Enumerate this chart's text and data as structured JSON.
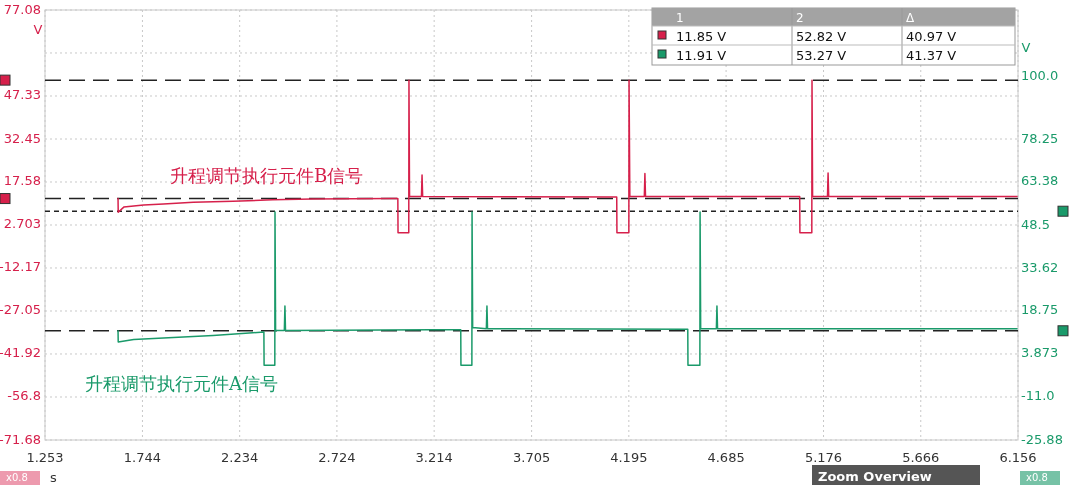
{
  "chart_data": {
    "type": "line",
    "xlabel": "s",
    "ylabel": "V",
    "y2label": "V",
    "xlim": [
      1.253,
      6.156
    ],
    "xticks": [
      1.253,
      1.744,
      2.234,
      2.724,
      3.214,
      3.705,
      4.195,
      4.685,
      5.176,
      5.666,
      6.156
    ],
    "ylim": [
      -71.68,
      77.08
    ],
    "yticks": [
      77.08,
      {
        "value": 62.21,
        "label": null
      },
      47.33,
      32.45,
      17.58,
      2.703,
      -12.17,
      -27.05,
      -41.92,
      -56.8,
      -71.68
    ],
    "y2lim": [
      -25.88,
      122.88
    ],
    "y2ticks": [
      {
        "value": 100,
        "label": "100.0"
      },
      78.25,
      63.38,
      48.5,
      33.62,
      18.75,
      3.873,
      {
        "value": -11,
        "label": "-11.0"
      },
      -25.88
    ],
    "grid": true,
    "series": [
      {
        "name": "升程调节执行元件B信号",
        "color": "#d6204b",
        "axis": "y",
        "x": [
          1.621,
          1.622,
          1.65,
          1.75,
          1.85,
          2.0,
          2.2,
          2.4,
          2.6,
          3.0,
          3.031,
          3.032,
          3.086,
          3.087,
          3.09,
          3.15,
          3.153,
          3.156,
          4.134,
          4.135,
          4.195,
          4.196,
          4.2,
          4.273,
          4.276,
          4.279,
          5.056,
          5.057,
          5.117,
          5.118,
          5.121,
          5.196,
          5.199,
          5.202,
          6.151
        ],
        "values": [
          11.9,
          7.1,
          8.9,
          9.6,
          10.0,
          10.6,
          10.9,
          11.4,
          11.7,
          11.9,
          11.9,
          0,
          0,
          52.8,
          12.6,
          12.6,
          20,
          12.6,
          12.4,
          0,
          0,
          52.8,
          12.6,
          12.6,
          20.5,
          12.6,
          12.6,
          0,
          0,
          52.8,
          12.6,
          12.6,
          20.7,
          12.6,
          12.6
        ]
      },
      {
        "name": "升程调节执行元件A信号",
        "color": "#1a9a6a",
        "axis": "y2",
        "x": [
          1.621,
          1.622,
          1.7,
          1.9,
          2.1,
          2.3,
          2.356,
          2.357,
          2.411,
          2.412,
          2.415,
          2.459,
          2.462,
          2.465,
          3.2,
          3.348,
          3.349,
          3.404,
          3.405,
          3.408,
          3.477,
          3.48,
          3.483,
          4.492,
          4.493,
          4.553,
          4.554,
          4.557,
          4.636,
          4.639,
          4.642,
          6.151
        ],
        "values": [
          11.9,
          8.0,
          8.9,
          9.6,
          10.3,
          11.2,
          11.5,
          0,
          0,
          53.0,
          12.0,
          12.0,
          20.5,
          12.0,
          12.3,
          12.3,
          0,
          0,
          53.0,
          13,
          12.6,
          20.5,
          12.6,
          12.4,
          0,
          0,
          53.0,
          12.6,
          12.6,
          20.5,
          12.6,
          12.6
        ]
      }
    ],
    "ref_lines": [
      {
        "axis": "y",
        "value": 52.82,
        "line_style": "dashed"
      },
      {
        "axis": "y",
        "value": 11.85,
        "line_style": "dashed"
      },
      {
        "axis": "y2",
        "value": 53.27,
        "line_style": "dotted"
      },
      {
        "axis": "y2",
        "value": 11.91,
        "line_style": "dashed"
      }
    ],
    "annotations": [
      "1",
      "2",
      "Δ",
      "11.85 V",
      "52.82 V",
      "40.97 V",
      "11.91 V",
      "53.27 V",
      "41.37 V",
      "x0.8",
      "x0.8",
      "Zoom Overview"
    ]
  }
}
